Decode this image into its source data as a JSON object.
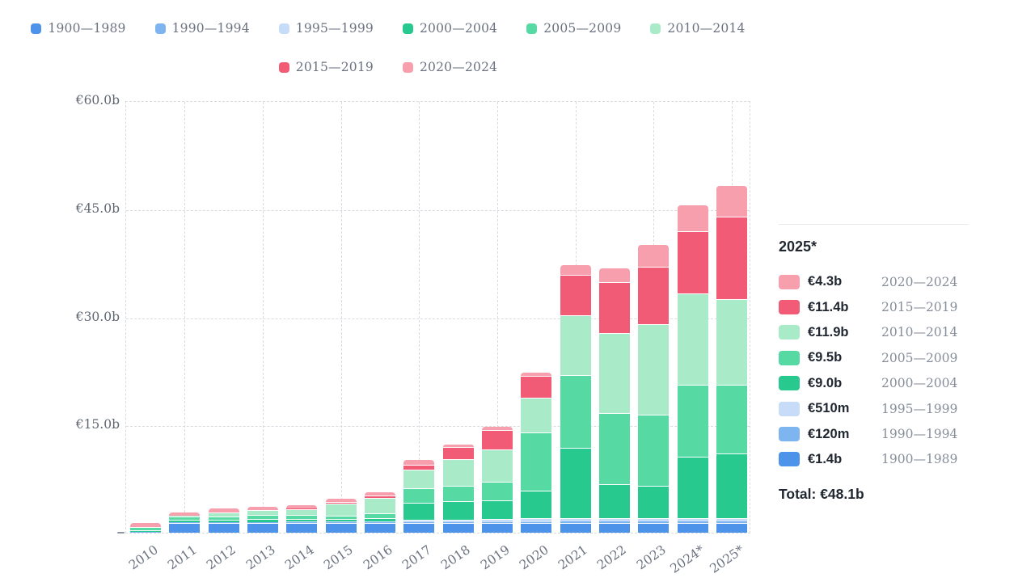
{
  "colors": {
    "blue_1900": "#4e93ea",
    "blue_1990": "#7eb5f1",
    "blue_1995": "#c6dcf8",
    "green_2000": "#28c98f",
    "green_2005": "#57d9a4",
    "green_2010": "#a9eac9",
    "red_2015": "#f15b76",
    "pink_2020": "#f89fae",
    "gridline": "#d8dbe0",
    "axis_text": "#6b7280",
    "dark_text": "#1f2630"
  },
  "legend": {
    "rows": [
      [
        {
          "label": "1900—1989",
          "color_key": "blue_1900"
        },
        {
          "label": "1990—1994",
          "color_key": "blue_1990"
        },
        {
          "label": "1995—1999",
          "color_key": "blue_1995"
        },
        {
          "label": "2000—2004",
          "color_key": "green_2000"
        },
        {
          "label": "2005—2009",
          "color_key": "green_2005"
        },
        {
          "label": "2010—2014",
          "color_key": "green_2010"
        }
      ],
      [
        {
          "label": "2015—2019",
          "color_key": "red_2015"
        },
        {
          "label": "2020—2024",
          "color_key": "pink_2020"
        }
      ]
    ]
  },
  "chart_data": {
    "type": "bar",
    "stacked": true,
    "title": "",
    "xlabel": "",
    "ylabel": "",
    "ylim": [
      0,
      60
    ],
    "y_tick_step": 15,
    "y_tick_labels": [
      "€60.0b",
      "€45.0b",
      "€30.0b",
      "€15.0b"
    ],
    "grid": "dashed",
    "categories": [
      "2010",
      "2011",
      "2012",
      "2013",
      "2014",
      "2015",
      "2016",
      "2017",
      "2018",
      "2019",
      "2020",
      "2021",
      "2022",
      "2023",
      "2024*",
      "2025*"
    ],
    "units": "billions EUR",
    "series": [
      {
        "name": "1900—1989",
        "color_key": "blue_1900",
        "values": [
          0.05,
          1.4,
          1.4,
          1.4,
          1.4,
          1.4,
          1.4,
          1.4,
          1.4,
          1.4,
          1.4,
          1.4,
          1.4,
          1.4,
          1.4,
          1.4
        ]
      },
      {
        "name": "1990—1994",
        "color_key": "blue_1990",
        "values": [
          0.01,
          0.02,
          0.03,
          0.03,
          0.04,
          0.05,
          0.05,
          0.08,
          0.1,
          0.1,
          0.1,
          0.12,
          0.12,
          0.12,
          0.12,
          0.12
        ]
      },
      {
        "name": "1995—1999",
        "color_key": "blue_1995",
        "values": [
          0.03,
          0.05,
          0.07,
          0.08,
          0.1,
          0.1,
          0.12,
          0.3,
          0.35,
          0.4,
          0.5,
          0.45,
          0.48,
          0.5,
          0.5,
          0.51
        ]
      },
      {
        "name": "2000—2004",
        "color_key": "green_2000",
        "values": [
          0.25,
          0.3,
          0.3,
          0.35,
          0.35,
          0.35,
          0.45,
          2.4,
          2.5,
          2.6,
          3.8,
          9.85,
          4.7,
          4.5,
          8.5,
          9.0
        ]
      },
      {
        "name": "2005—2009",
        "color_key": "green_2005",
        "values": [
          0.45,
          0.45,
          0.5,
          0.6,
          0.55,
          0.5,
          0.7,
          1.95,
          2.2,
          2.55,
          8.1,
          10.05,
          9.85,
          9.9,
          10.0,
          9.5
        ]
      },
      {
        "name": "2010—2014",
        "color_key": "green_2010",
        "values": [
          0.0,
          0.1,
          0.55,
          0.65,
          0.85,
          1.6,
          2.05,
          2.6,
          3.7,
          4.45,
          4.8,
          8.3,
          11.1,
          12.55,
          12.7,
          11.9
        ]
      },
      {
        "name": "2015—2019",
        "color_key": "red_2015",
        "values": [
          0.0,
          0.0,
          0.0,
          0.0,
          0.05,
          0.3,
          0.4,
          0.7,
          1.6,
          2.7,
          3.1,
          5.6,
          7.1,
          7.9,
          8.65,
          11.4
        ]
      },
      {
        "name": "2020—2024",
        "color_key": "pink_2020",
        "values": [
          0.55,
          0.5,
          0.5,
          0.5,
          0.45,
          0.4,
          0.4,
          0.65,
          0.4,
          0.45,
          0.4,
          1.3,
          1.9,
          3.1,
          3.5,
          4.3
        ]
      }
    ]
  },
  "tooltip": {
    "title": "2025*",
    "rows": [
      {
        "value": "€4.3b",
        "period": "2020—2024",
        "color_key": "pink_2020"
      },
      {
        "value": "€11.4b",
        "period": "2015—2019",
        "color_key": "red_2015"
      },
      {
        "value": "€11.9b",
        "period": "2010—2014",
        "color_key": "green_2010"
      },
      {
        "value": "€9.5b",
        "period": "2005—2009",
        "color_key": "green_2005"
      },
      {
        "value": "€9.0b",
        "period": "2000—2004",
        "color_key": "green_2000"
      },
      {
        "value": "€510m",
        "period": "1995—1999",
        "color_key": "blue_1995"
      },
      {
        "value": "€120m",
        "period": "1990—1994",
        "color_key": "blue_1990"
      },
      {
        "value": "€1.4b",
        "period": "1900—1989",
        "color_key": "blue_1900"
      }
    ],
    "total_label": "Total: €48.1b"
  }
}
